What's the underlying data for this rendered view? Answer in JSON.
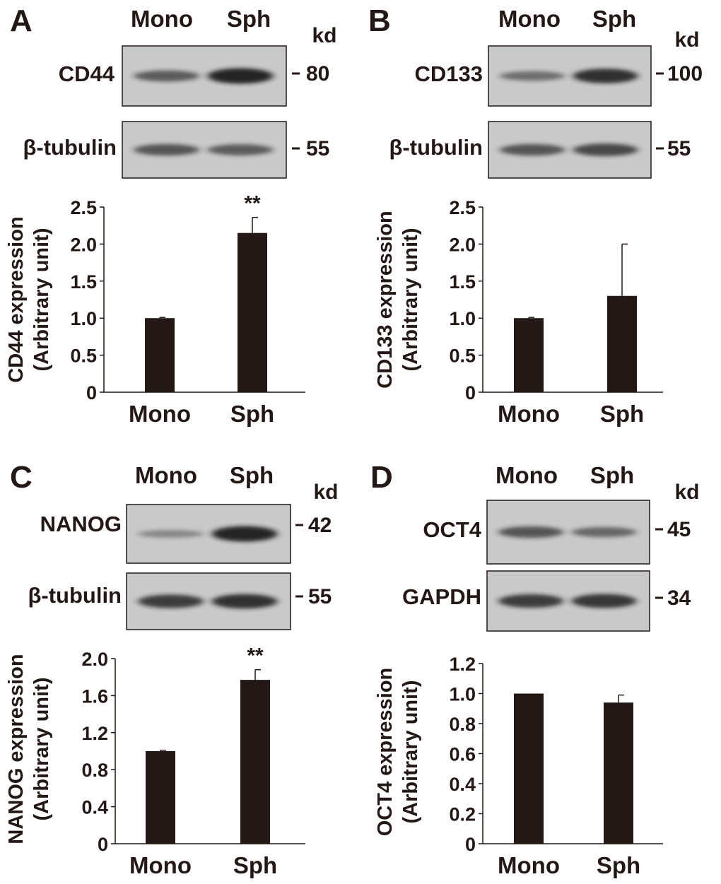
{
  "panels": [
    {
      "label": "A",
      "lanes": [
        "Mono",
        "Sph"
      ],
      "kd_label": "kd",
      "blots": [
        {
          "protein": "CD44",
          "kd": "80",
          "band_intensity": [
            0.55,
            1.0
          ]
        },
        {
          "protein": "β-tubulin",
          "kd": "55",
          "band_intensity": [
            0.6,
            0.55
          ]
        }
      ]
    },
    {
      "label": "B",
      "lanes": [
        "Mono",
        "Sph"
      ],
      "kd_label": "kd",
      "blots": [
        {
          "protein": "CD133",
          "kd": "100",
          "band_intensity": [
            0.4,
            0.9
          ]
        },
        {
          "protein": "β-tubulin",
          "kd": "55",
          "band_intensity": [
            0.6,
            0.7
          ]
        }
      ]
    },
    {
      "label": "C",
      "lanes": [
        "Mono",
        "Sph"
      ],
      "kd_label": "kd",
      "blots": [
        {
          "protein": "NANOG",
          "kd": "42",
          "band_intensity": [
            0.2,
            1.0
          ]
        },
        {
          "protein": "β-tubulin",
          "kd": "55",
          "band_intensity": [
            0.8,
            0.9
          ]
        }
      ]
    },
    {
      "label": "D",
      "lanes": [
        "Mono",
        "Sph"
      ],
      "kd_label": "kd",
      "blots": [
        {
          "protein": "OCT4",
          "kd": "45",
          "band_intensity": [
            0.6,
            0.45
          ]
        },
        {
          "protein": "GAPDH",
          "kd": "34",
          "band_intensity": [
            0.8,
            0.85
          ]
        }
      ]
    }
  ],
  "chart_data": [
    {
      "type": "bar",
      "panel": "A",
      "categories": [
        "Mono",
        "Sph"
      ],
      "values": [
        1.0,
        2.15
      ],
      "errors": [
        0.01,
        0.21
      ],
      "significance": [
        "",
        "**"
      ],
      "ylabel_line1": "CD44 expression",
      "ylabel_line2": "(Arbitrary unit)",
      "ylim": [
        0,
        2.5
      ],
      "yticks": [
        "0",
        "0.5",
        "1.0",
        "1.5",
        "2.0",
        "2.5"
      ],
      "grid": false
    },
    {
      "type": "bar",
      "panel": "B",
      "categories": [
        "Mono",
        "Sph"
      ],
      "values": [
        1.0,
        1.3
      ],
      "errors": [
        0.01,
        0.7
      ],
      "significance": [
        "",
        ""
      ],
      "ylabel_line1": "CD133 expression",
      "ylabel_line2": "(Arbitrary unit)",
      "ylim": [
        0,
        2.5
      ],
      "yticks": [
        "0",
        "0.5",
        "1.0",
        "1.5",
        "2.0",
        "2.5"
      ],
      "grid": false
    },
    {
      "type": "bar",
      "panel": "C",
      "categories": [
        "Mono",
        "Sph"
      ],
      "values": [
        1.0,
        1.77
      ],
      "errors": [
        0.01,
        0.11
      ],
      "significance": [
        "",
        "**"
      ],
      "ylabel_line1": "NANOG expression",
      "ylabel_line2": "(Arbitrary unit)",
      "ylim": [
        0,
        2.0
      ],
      "yticks": [
        "0",
        "0.4",
        "0.8",
        "1.2",
        "1.6",
        "2.0"
      ],
      "grid": false
    },
    {
      "type": "bar",
      "panel": "D",
      "categories": [
        "Mono",
        "Sph"
      ],
      "values": [
        1.0,
        0.94
      ],
      "errors": [
        0.0,
        0.05
      ],
      "significance": [
        "",
        ""
      ],
      "ylabel_line1": "OCT4 expression",
      "ylabel_line2": "(Arbitrary unit)",
      "ylim": [
        0,
        1.2
      ],
      "yticks": [
        "0",
        "0.2",
        "0.4",
        "0.6",
        "0.8",
        "1.0",
        "1.2"
      ],
      "grid": false
    }
  ],
  "colors": {
    "bar": "#231815",
    "ink": "#231815",
    "blot_bg": "#c9c9c9",
    "band": "#1a1a1a"
  }
}
